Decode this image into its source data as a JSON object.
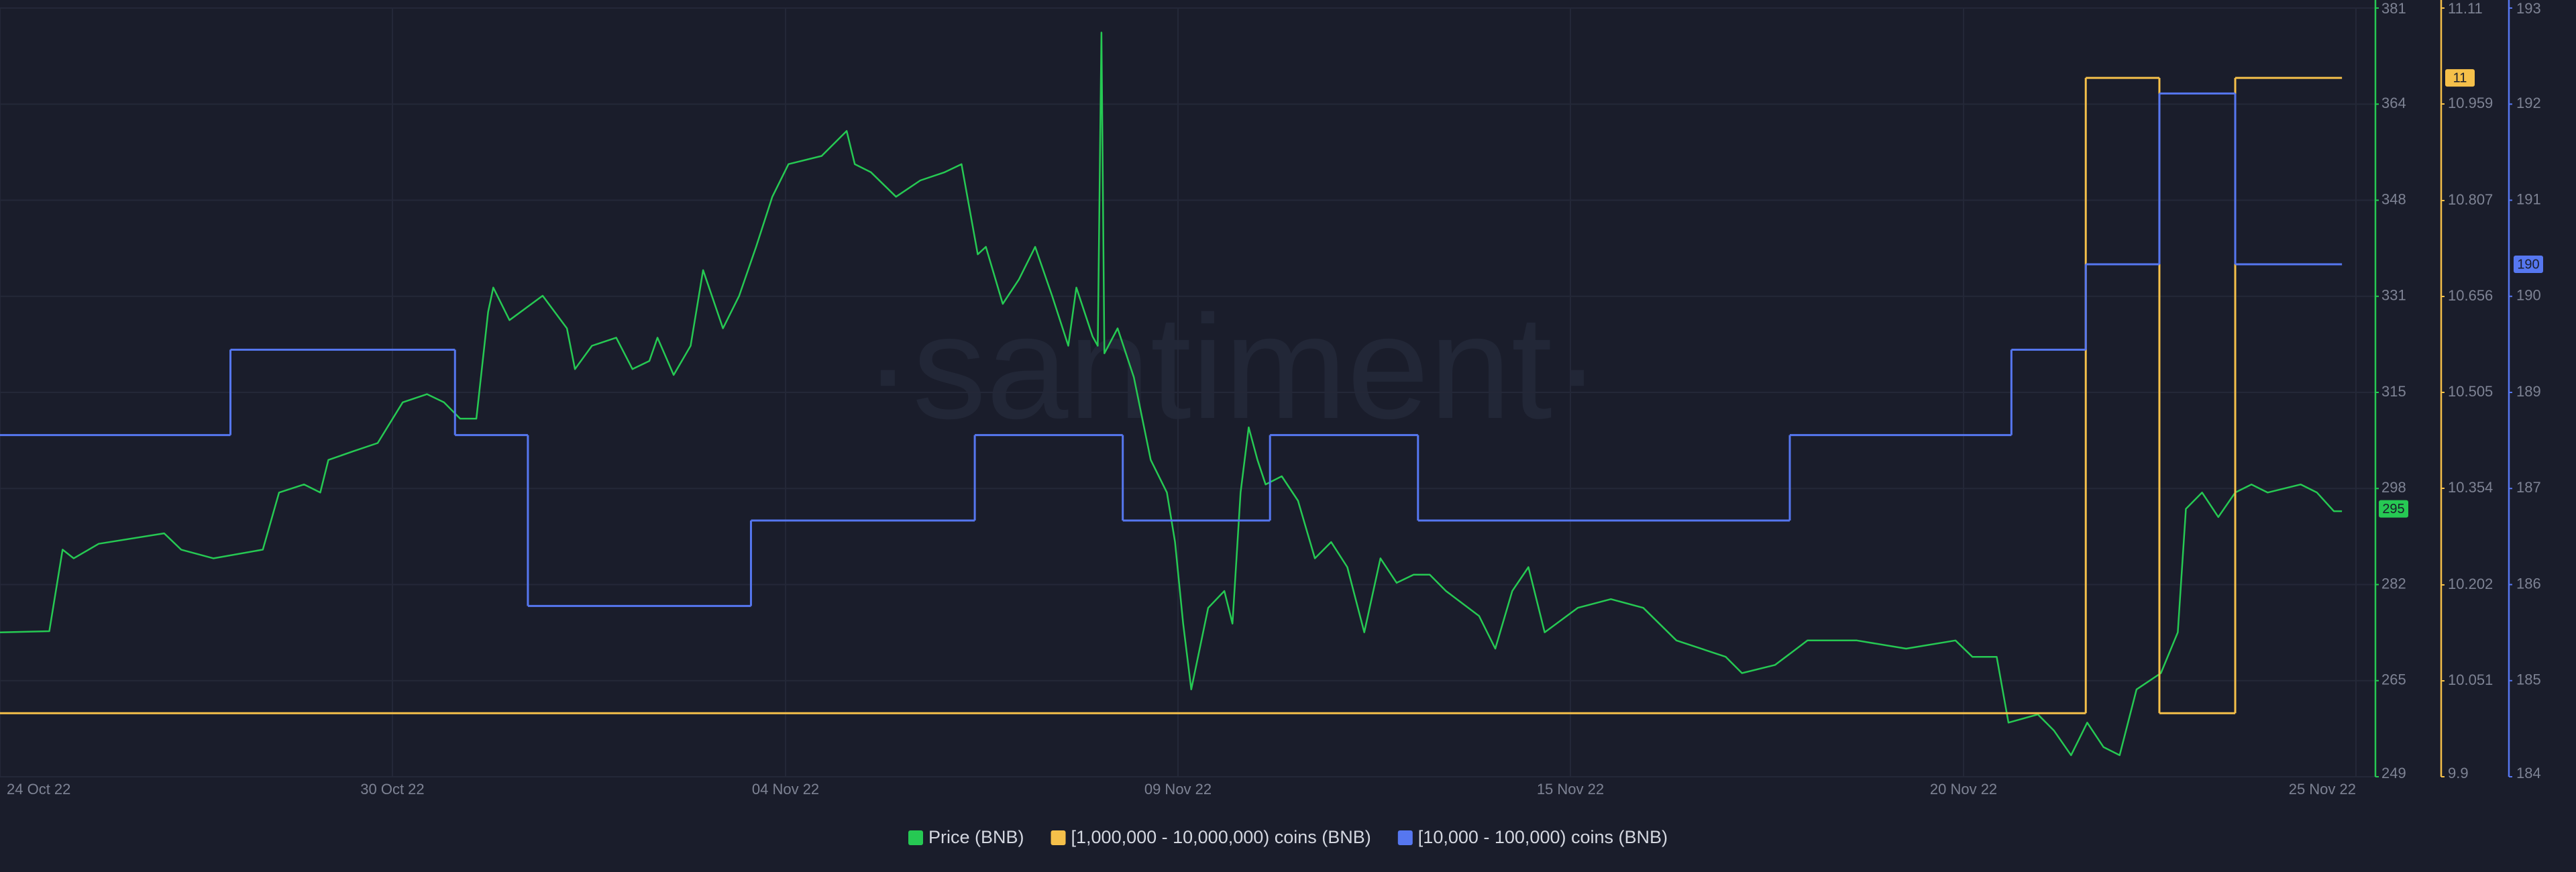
{
  "chart_data": {
    "type": "line",
    "watermark": "·santiment·",
    "xlim": [
      0,
      32
    ],
    "xticks": [
      {
        "value": 0,
        "label": "24 Oct 22"
      },
      {
        "value": 5.33,
        "label": "30 Oct 22"
      },
      {
        "value": 10.67,
        "label": "04 Nov 22"
      },
      {
        "value": 16,
        "label": "09 Nov 22"
      },
      {
        "value": 21.33,
        "label": "15 Nov 22"
      },
      {
        "value": 26.67,
        "label": "20 Nov 22"
      },
      {
        "value": 32,
        "label": "25 Nov 22"
      }
    ],
    "ylim": [
      249,
      381
    ],
    "yticks": [
      249,
      {
        "value": 265.5,
        "label": "265"
      },
      282,
      {
        "value": 298.5,
        "label": "298"
      },
      315,
      {
        "value": 331.5,
        "label": "331"
      },
      348,
      {
        "value": 364.5,
        "label": "364"
      },
      381
    ],
    "y2lim": [
      9.9,
      11.11
    ],
    "y2ticks": [
      9.9,
      10.051,
      10.202,
      10.354,
      10.505,
      10.656,
      10.807,
      10.959,
      11.11
    ],
    "y3lim": [
      184,
      193
    ],
    "y3ticks": [
      184,
      {
        "value": 185.125,
        "label": "185"
      },
      {
        "value": 186.25,
        "label": "186"
      },
      {
        "value": 187.375,
        "label": "187"
      },
      {
        "value": 188.5,
        "label": "189"
      },
      {
        "value": 189.625,
        "label": "190"
      },
      {
        "value": 190.75,
        "label": "191"
      },
      {
        "value": 191.875,
        "label": "192"
      },
      193
    ],
    "grid": true,
    "series": [
      {
        "name": "Price (BNB)",
        "color": "#26c953",
        "axis": "y",
        "badge": 295,
        "x": [
          0,
          0.67,
          0.85,
          1.0,
          1.34,
          2.23,
          2.46,
          2.9,
          3.57,
          3.79,
          4.13,
          4.35,
          4.46,
          4.8,
          5.13,
          5.47,
          5.8,
          6.03,
          6.25,
          6.47,
          6.63,
          6.7,
          6.92,
          7.37,
          7.7,
          7.81,
          8.04,
          8.37,
          8.59,
          8.82,
          8.93,
          9.15,
          9.38,
          9.55,
          9.82,
          10.04,
          10.27,
          10.49,
          10.71,
          11.16,
          11.5,
          11.61,
          11.83,
          12.17,
          12.5,
          12.83,
          13.06,
          13.28,
          13.39,
          13.62,
          13.84,
          14.06,
          14.29,
          14.51,
          14.62,
          14.73,
          14.84,
          14.91,
          14.96,
          15.0,
          15.18,
          15.4,
          15.63,
          15.85,
          15.96,
          16.07,
          16.18,
          16.41,
          16.63,
          16.74,
          16.85,
          16.96,
          17.08,
          17.19,
          17.41,
          17.63,
          17.86,
          18.08,
          18.3,
          18.53,
          18.75,
          18.97,
          19.2,
          19.42,
          19.64,
          20.09,
          20.31,
          20.54,
          20.76,
          20.98,
          21.43,
          21.88,
          22.32,
          22.77,
          23.44,
          23.66,
          24.11,
          24.55,
          25.22,
          25.89,
          26.56,
          26.79,
          27.12,
          27.28,
          27.68,
          27.9,
          28.13,
          28.35,
          28.57,
          28.79,
          29.02,
          29.35,
          29.58,
          29.69,
          29.91,
          30.13,
          30.36,
          30.58,
          30.8,
          31.25,
          31.47,
          31.7,
          31.81
        ],
        "values": [
          273.8,
          274,
          288,
          286.5,
          289,
          290.8,
          288,
          286.5,
          288,
          297.8,
          299.2,
          297.8,
          303.4,
          304.9,
          306.3,
          313.3,
          314.7,
          313.3,
          310.5,
          310.5,
          328.8,
          333,
          327.4,
          331.6,
          326,
          319,
          323,
          324.4,
          319,
          320.4,
          324.4,
          318,
          323,
          336,
          326,
          331.6,
          340,
          348.6,
          354.2,
          355.6,
          359.9,
          354.2,
          352.8,
          348.6,
          351.4,
          352.8,
          354.2,
          338.7,
          340,
          330.2,
          334.4,
          340,
          331.6,
          323,
          333,
          328.8,
          324.6,
          323,
          376.8,
          321.7,
          326,
          317.6,
          303.4,
          297.8,
          289.3,
          275.3,
          264,
          278,
          280.9,
          275.3,
          297.8,
          309,
          303.4,
          299.2,
          300.6,
          296.4,
          286.5,
          289.3,
          285,
          273.8,
          286.5,
          282.3,
          283.7,
          283.7,
          280.9,
          276.6,
          271,
          280.9,
          285,
          273.8,
          278,
          279.5,
          278,
          272.4,
          269.6,
          266.8,
          268.2,
          272.4,
          272.4,
          271,
          272.4,
          269.6,
          269.6,
          258.3,
          259.7,
          256.9,
          252.7,
          258.3,
          254.1,
          252.7,
          264,
          266.8,
          273.8,
          295,
          297.8,
          293.6,
          297.8,
          299.2,
          297.8,
          299.2,
          297.8,
          294.6,
          294.6
        ]
      },
      {
        "name": "[1,000,000 - 10,000,000) coins (BNB)",
        "color": "#f5c04a",
        "axis": "y2",
        "step": true,
        "badge": 11,
        "x": [
          0,
          28.33,
          29.33,
          30.36,
          31.81
        ],
        "values": [
          10,
          11,
          10,
          11,
          11
        ]
      },
      {
        "name": "[10,000 - 100,000) coins (BNB)",
        "color": "#5677f0",
        "axis": "y3",
        "step": true,
        "badge": 190,
        "x": [
          0,
          3.13,
          6.18,
          7.17,
          10.2,
          13.24,
          15.25,
          17.25,
          19.26,
          24.31,
          27.32,
          28.33,
          29.33,
          30.36,
          31.81
        ],
        "values": [
          188,
          189,
          188,
          186,
          187,
          188,
          187,
          188,
          187,
          188,
          189,
          190,
          192,
          190,
          190
        ]
      }
    ]
  }
}
